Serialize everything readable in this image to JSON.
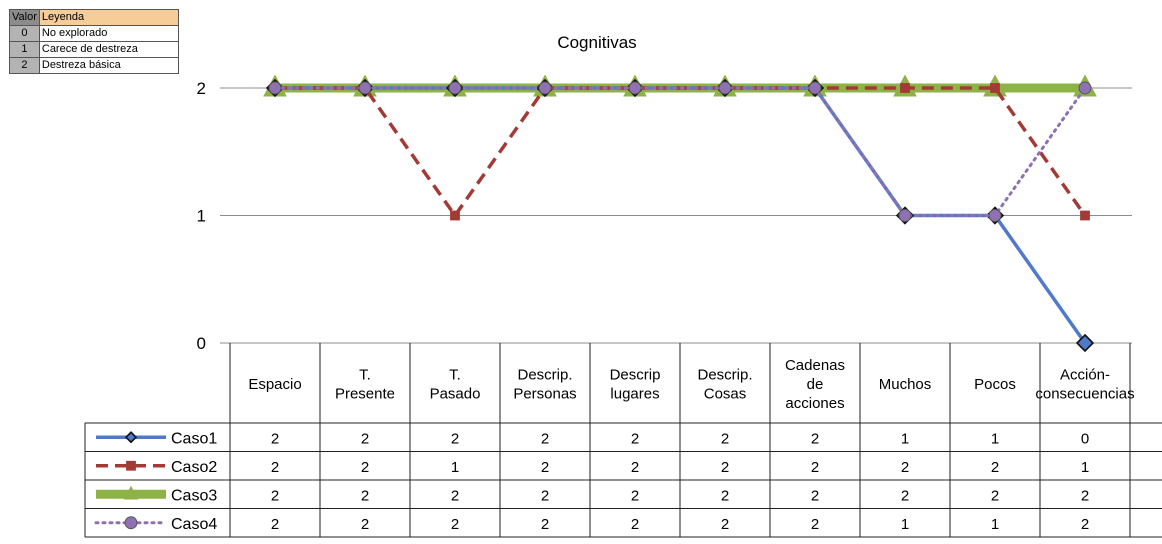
{
  "legend_table": {
    "header": [
      "Valor",
      "Leyenda"
    ],
    "rows": [
      {
        "value": "0",
        "label": "No explorado"
      },
      {
        "value": "1",
        "label": "Carece de destreza"
      },
      {
        "value": "2",
        "label": "Destreza básica"
      }
    ]
  },
  "chart_data": {
    "type": "line",
    "title": "Cognitivas",
    "xlabel": "",
    "ylabel": "",
    "ylim": [
      0,
      2
    ],
    "yticks": [
      "0",
      "1",
      "2"
    ],
    "grid": true,
    "legend": "data-table-bottom",
    "categories": [
      [
        "Espacio"
      ],
      [
        "T.",
        "Presente"
      ],
      [
        "T.",
        "Pasado"
      ],
      [
        "Descrip.",
        "Personas"
      ],
      [
        "Descrip",
        "lugares"
      ],
      [
        "Descrip.",
        "Cosas"
      ],
      [
        "Cadenas",
        "de",
        "acciones"
      ],
      [
        "Muchos"
      ],
      [
        "Pocos"
      ],
      [
        "Acción-",
        "consecuencias"
      ]
    ],
    "series": [
      {
        "name": "Caso1",
        "values": [
          2,
          2,
          2,
          2,
          2,
          2,
          2,
          1,
          1,
          0
        ],
        "color": "#4f79c9",
        "marker": "diamond",
        "dash": "solid"
      },
      {
        "name": "Caso2",
        "values": [
          2,
          2,
          1,
          2,
          2,
          2,
          2,
          2,
          2,
          1
        ],
        "color": "#a33a35",
        "marker": "square",
        "dash": "dashed"
      },
      {
        "name": "Caso3",
        "values": [
          2,
          2,
          2,
          2,
          2,
          2,
          2,
          2,
          2,
          2
        ],
        "color": "#8db347",
        "marker": "triangle",
        "dash": "solid"
      },
      {
        "name": "Caso4",
        "values": [
          2,
          2,
          2,
          2,
          2,
          2,
          2,
          1,
          1,
          2
        ],
        "color": "#8f71b3",
        "marker": "circle",
        "dash": "dotted"
      }
    ]
  }
}
